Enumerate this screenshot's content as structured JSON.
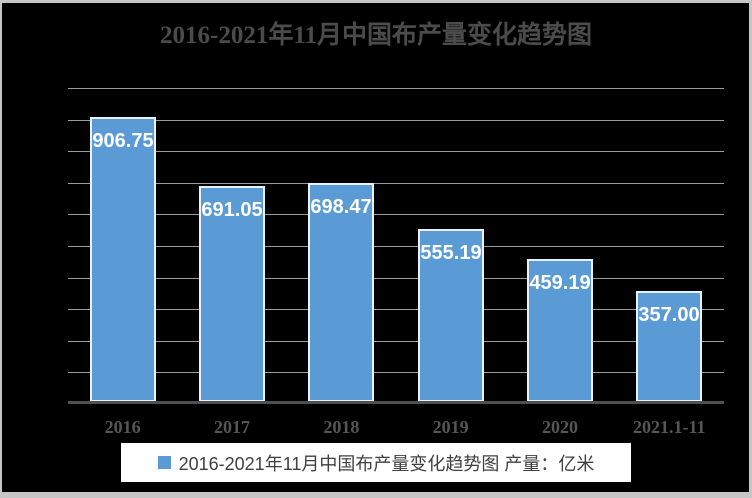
{
  "window": {
    "background": "#000000",
    "frame_edge_color": "#c6c6c6"
  },
  "colors": {
    "bar_fill": "#5B9BD5",
    "bar_border": "#e9f1fa",
    "value_label": "#ffffff",
    "gridline": "#9b9b9b",
    "axis_line": "#4f4f4f",
    "title_text": "#4b4b4b",
    "axis_label_text": "#565656",
    "legend_background": "#ffffff",
    "legend_text": "#404040"
  },
  "chart_data": {
    "type": "bar",
    "title": "2016-2021年11月中国布产量变化趋势图",
    "categories": [
      "2016",
      "2017",
      "2018",
      "2019",
      "2020",
      "2021.1-11"
    ],
    "values": [
      906.75,
      691.05,
      698.47,
      555.19,
      459.19,
      357.0
    ],
    "value_labels": [
      "906.75",
      "691.05",
      "698.47",
      "555.19",
      "459.19",
      "357.00"
    ],
    "legend_label": "2016-2021年11月中国布产量变化趋势图 产量：亿米",
    "legend_marker": "blue-square",
    "xlabel": "",
    "ylabel": "",
    "ylim": [
      0,
      1000
    ],
    "y_gridline_step": 100,
    "y_axis_labels_visible": false,
    "grid": "horizontal",
    "legend_position": "bottom",
    "value_labels_position": "inside-top"
  }
}
